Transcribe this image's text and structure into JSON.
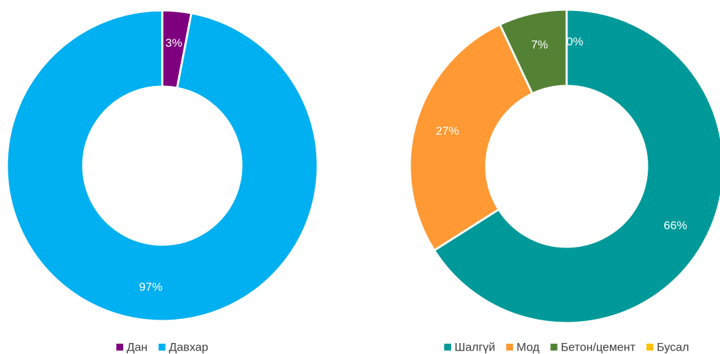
{
  "chart_data": [
    {
      "type": "donut",
      "categories": [
        "Дан",
        "Давхар"
      ],
      "values": [
        3,
        97
      ],
      "value_labels": [
        "3%",
        "97%"
      ],
      "colors": [
        "#7f007f",
        "#00b0f0"
      ],
      "legend": "bottom"
    },
    {
      "type": "donut",
      "categories": [
        "Шалгүй",
        "Мод",
        "Бетон/цемент",
        "Бусал"
      ],
      "values": [
        66,
        27,
        7,
        0
      ],
      "value_labels": [
        "66%",
        "27%",
        "7%",
        "0%"
      ],
      "colors": [
        "#009999",
        "#ff9933",
        "#548235",
        "#ffc000"
      ],
      "legend": "bottom"
    }
  ]
}
